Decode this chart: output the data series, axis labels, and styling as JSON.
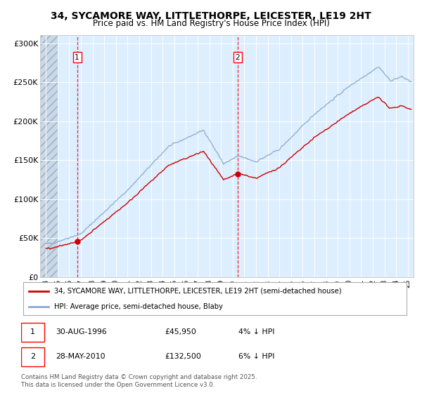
{
  "title_line1": "34, SYCAMORE WAY, LITTLETHORPE, LEICESTER, LE19 2HT",
  "title_line2": "Price paid vs. HM Land Registry's House Price Index (HPI)",
  "ylabel_ticks": [
    "£0",
    "£50K",
    "£100K",
    "£150K",
    "£200K",
    "£250K",
    "£300K"
  ],
  "ytick_values": [
    0,
    50000,
    100000,
    150000,
    200000,
    250000,
    300000
  ],
  "ylim": [
    0,
    310000
  ],
  "xlim_start": 1993.5,
  "xlim_end": 2025.5,
  "purchase1_year": 1996.67,
  "purchase1_price": 45950,
  "purchase2_year": 2010.41,
  "purchase2_price": 132500,
  "legend_line1": "34, SYCAMORE WAY, LITTLETHORPE, LEICESTER, LE19 2HT (semi-detached house)",
  "legend_line2": "HPI: Average price, semi-detached house, Blaby",
  "footer": "Contains HM Land Registry data © Crown copyright and database right 2025.\nThis data is licensed under the Open Government Licence v3.0.",
  "line_color_property": "#cc0000",
  "line_color_hpi": "#88aacc",
  "background_plot": "#ddeeff",
  "grid_color": "#ffffff",
  "hatch_end": 1995.0
}
